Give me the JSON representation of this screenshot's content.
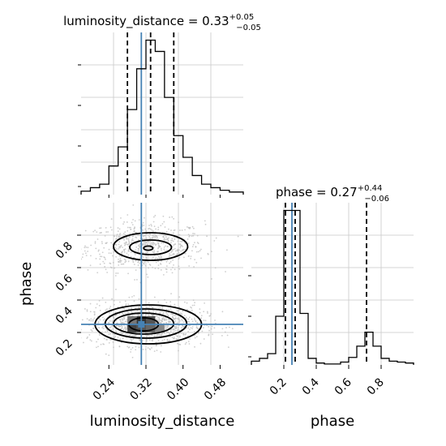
{
  "chart_data": {
    "type": "corner",
    "parameters": [
      "luminosity_distance",
      "phase"
    ],
    "truths": {
      "luminosity_distance": 0.31,
      "phase": 0.25
    },
    "grid": true,
    "colors": {
      "hist": "#000000",
      "truth": "#4682b4",
      "quantile": "#000000",
      "contour": "#000000",
      "points": "#bdbdbd",
      "grid": "#c8c8c8"
    },
    "panels": [
      {
        "name": "luminosity_distance-hist",
        "title": {
          "main": "luminosity_distance = 0.33",
          "sup": "+0.05",
          "sub": "−0.05"
        },
        "xlim": [
          0.18,
          0.53
        ],
        "quantiles": [
          0.28,
          0.33,
          0.38
        ],
        "truth": 0.31,
        "bin_edges": [
          0.18,
          0.2,
          0.22,
          0.24,
          0.26,
          0.28,
          0.3,
          0.32,
          0.34,
          0.36,
          0.38,
          0.4,
          0.42,
          0.44,
          0.46,
          0.48,
          0.5,
          0.53
        ],
        "counts": [
          4,
          8,
          12,
          33,
          55,
          98,
          145,
          178,
          165,
          112,
          68,
          43,
          22,
          12,
          8,
          5,
          3
        ]
      },
      {
        "name": "phase-hist",
        "title": {
          "main": "phase = 0.27",
          "sup": "+0.44",
          "sub": "−0.06"
        },
        "xlim": [
          0,
          1
        ],
        "quantiles": [
          0.21,
          0.27,
          0.71
        ],
        "truth": 0.25,
        "bin_edges": [
          0,
          0.05,
          0.1,
          0.15,
          0.2,
          0.25,
          0.3,
          0.35,
          0.4,
          0.45,
          0.5,
          0.55,
          0.6,
          0.65,
          0.7,
          0.75,
          0.8,
          0.85,
          0.9,
          0.95,
          1
        ],
        "counts": [
          4,
          7,
          12,
          52,
          165,
          165,
          55,
          7,
          2,
          1,
          1,
          3,
          8,
          20,
          35,
          20,
          7,
          4,
          3,
          2
        ]
      },
      {
        "name": "phase-vs-luminosity_distance",
        "xlim": [
          0.18,
          0.53
        ],
        "ylim": [
          0,
          1
        ],
        "truth": [
          0.31,
          0.25
        ],
        "modes": [
          {
            "cx": 0.32,
            "cy": 0.73,
            "sx": 0.045,
            "sy": 0.06,
            "n": 700
          },
          {
            "cx": 0.32,
            "cy": 0.25,
            "sx": 0.045,
            "sy": 0.05,
            "n": 1100
          }
        ],
        "contours": [
          {
            "cx": 0.325,
            "cy": 0.72,
            "rx": 0.01,
            "ry": 0.013,
            "fill": "#e0e0e0"
          },
          {
            "cx": 0.33,
            "cy": 0.725,
            "rx": 0.045,
            "ry": 0.045
          },
          {
            "cx": 0.33,
            "cy": 0.73,
            "rx": 0.08,
            "ry": 0.085
          },
          {
            "cx": 0.315,
            "cy": 0.25,
            "rx": 0.032,
            "ry": 0.04,
            "fill": "#a8a8a8"
          },
          {
            "cx": 0.315,
            "cy": 0.255,
            "rx": 0.065,
            "ry": 0.065
          },
          {
            "cx": 0.32,
            "cy": 0.255,
            "rx": 0.088,
            "ry": 0.09
          },
          {
            "cx": 0.325,
            "cy": 0.25,
            "rx": 0.115,
            "ry": 0.12
          }
        ],
        "density_cells": [
          {
            "x": 0.28,
            "y": 0.2,
            "shade": "#444444"
          },
          {
            "x": 0.3,
            "y": 0.2,
            "shade": "#555555"
          },
          {
            "x": 0.32,
            "y": 0.2,
            "shade": "#666666"
          },
          {
            "x": 0.3,
            "y": 0.25,
            "shade": "#333333"
          },
          {
            "x": 0.32,
            "y": 0.25,
            "shade": "#555555"
          },
          {
            "x": 0.28,
            "y": 0.25,
            "shade": "#777777"
          },
          {
            "x": 0.34,
            "y": 0.2,
            "shade": "#888888"
          }
        ]
      }
    ],
    "xticks": {
      "luminosity_distance": [
        "0.24",
        "0.32",
        "0.40",
        "0.48"
      ],
      "phase": [
        "0.2",
        "0.4",
        "0.6",
        "0.8"
      ]
    },
    "yticks": {
      "phase": [
        "0.2",
        "0.4",
        "0.6",
        "0.8"
      ]
    },
    "xticks_values": {
      "luminosity_distance": [
        0.24,
        0.32,
        0.4,
        0.48
      ],
      "phase": [
        0.2,
        0.4,
        0.6,
        0.8
      ]
    },
    "yticks_values": {
      "phase": [
        0.2,
        0.4,
        0.6,
        0.8
      ]
    },
    "xlabel": {
      "luminosity_distance": "luminosity_distance",
      "phase": "phase"
    },
    "ylabel": {
      "phase": "phase"
    }
  }
}
